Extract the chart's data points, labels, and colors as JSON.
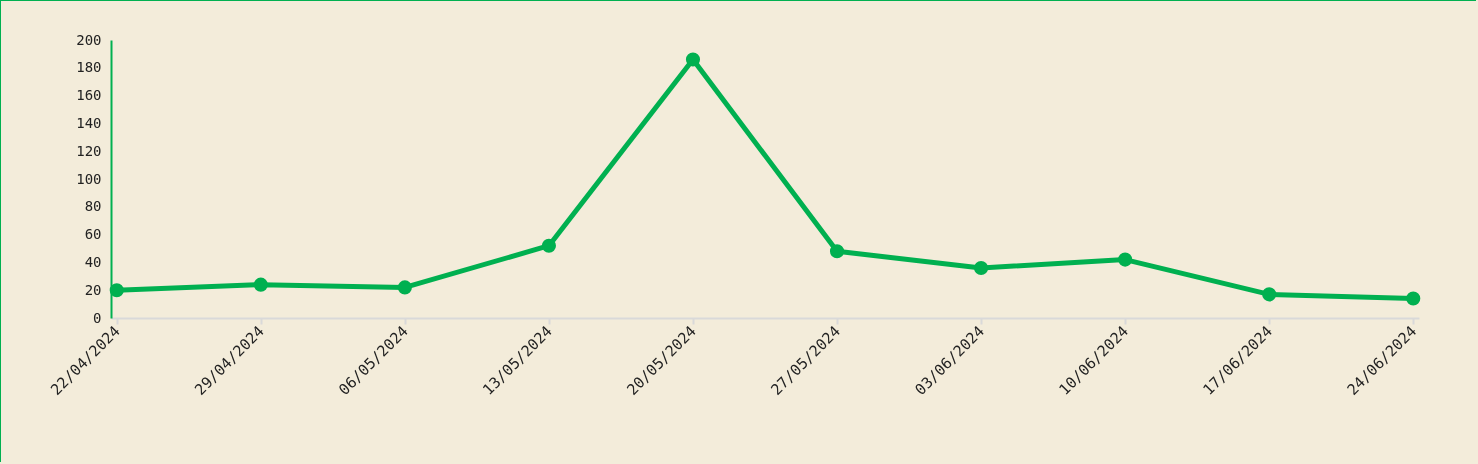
{
  "chart_data": {
    "type": "line",
    "categories": [
      "22/04/2024",
      "29/04/2024",
      "06/05/2024",
      "13/05/2024",
      "20/05/2024",
      "27/05/2024",
      "03/06/2024",
      "10/06/2024",
      "17/06/2024",
      "24/06/2024"
    ],
    "series": [
      {
        "color": "#00b050",
        "values": [
          20,
          24,
          22,
          52,
          186,
          48,
          36,
          42,
          17,
          14
        ]
      }
    ],
    "ylim": [
      0,
      200
    ],
    "yticks": [
      0,
      20,
      40,
      60,
      80,
      100,
      120,
      140,
      160,
      180,
      200
    ],
    "grid": false,
    "marker": "circle",
    "line_style": "solid",
    "legend": false
  }
}
